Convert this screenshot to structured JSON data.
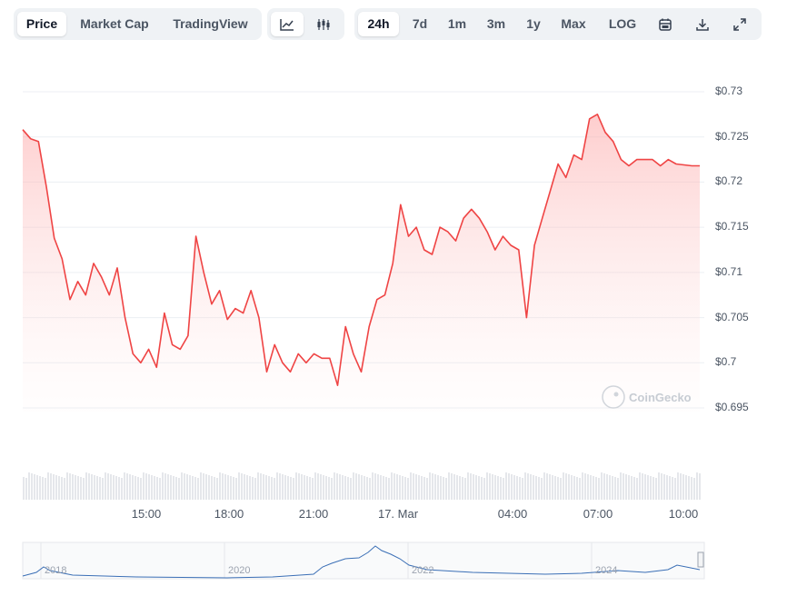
{
  "toolbar": {
    "view_tabs": [
      "Price",
      "Market Cap",
      "TradingView"
    ],
    "active_view": "Price",
    "chart_style_icons": [
      "line-chart-icon",
      "candlestick-icon"
    ],
    "ranges": [
      "24h",
      "7d",
      "1m",
      "3m",
      "1y",
      "Max",
      "LOG"
    ],
    "active_range": "24h",
    "action_icons": [
      "calendar-icon",
      "download-icon",
      "expand-icon"
    ]
  },
  "watermark": "CoinGecko",
  "colors": {
    "line": "#ef4444",
    "fill_top": "#fecaca",
    "volume": "#e5e7eb",
    "navigator": "#3b6fb6"
  },
  "chart_data": {
    "type": "area",
    "series": [
      {
        "x": [
          "12:55",
          "13:10",
          "13:25",
          "13:40",
          "13:55",
          "14:10",
          "14:25",
          "14:40",
          "14:55",
          "15:10",
          "15:25",
          "15:40",
          "15:55",
          "16:10",
          "16:25",
          "16:40",
          "16:55",
          "17:10",
          "17:25",
          "17:40",
          "17:55",
          "18:10",
          "18:25",
          "18:40",
          "18:55",
          "19:10",
          "19:25",
          "19:40",
          "19:55",
          "20:10",
          "20:25",
          "20:40",
          "20:55",
          "21:10",
          "21:25",
          "21:40",
          "21:55",
          "22:10",
          "22:25",
          "22:40",
          "22:55",
          "23:10",
          "23:25",
          "23:40",
          "23:55",
          "00:10",
          "00:25",
          "00:40",
          "00:55",
          "01:10",
          "01:25",
          "01:40",
          "01:55",
          "02:10",
          "02:25",
          "02:40",
          "02:55",
          "03:10",
          "03:25",
          "03:40",
          "03:55",
          "04:10",
          "04:25",
          "04:40",
          "04:55",
          "05:10",
          "05:25",
          "05:40",
          "05:55",
          "06:10",
          "06:25",
          "06:40",
          "06:55",
          "07:10",
          "07:25",
          "07:40",
          "07:55",
          "08:10",
          "08:25",
          "08:40",
          "08:55",
          "09:10",
          "09:25",
          "09:40",
          "09:55",
          "10:10",
          "10:25"
        ],
        "values": [
          0.7258,
          0.7248,
          0.7245,
          0.7195,
          0.7138,
          0.7115,
          0.707,
          0.709,
          0.7075,
          0.711,
          0.7095,
          0.7075,
          0.7105,
          0.705,
          0.701,
          0.7,
          0.7015,
          0.6995,
          0.7055,
          0.702,
          0.7015,
          0.703,
          0.714,
          0.71,
          0.7065,
          0.708,
          0.7048,
          0.706,
          0.7055,
          0.708,
          0.705,
          0.699,
          0.702,
          0.7,
          0.699,
          0.701,
          0.7,
          0.701,
          0.7005,
          0.7005,
          0.6975,
          0.704,
          0.701,
          0.699,
          0.704,
          0.707,
          0.7075,
          0.711,
          0.7175,
          0.714,
          0.715,
          0.7125,
          0.712,
          0.715,
          0.7145,
          0.7135,
          0.716,
          0.717,
          0.716,
          0.7145,
          0.7125,
          0.714,
          0.713,
          0.7125,
          0.705,
          0.713,
          0.716,
          0.719,
          0.722,
          0.7205,
          0.723,
          0.7225,
          0.727,
          0.7275,
          0.7255,
          0.7245,
          0.7225,
          0.7218,
          0.7225,
          0.7225,
          0.7225,
          0.7218,
          0.7225,
          0.722,
          0.7219,
          0.7218,
          0.7218
        ]
      }
    ],
    "ylim": [
      0.6945,
      0.7305
    ],
    "y_ticks": [
      "$0.73",
      "$0.725",
      "$0.72",
      "$0.715",
      "$0.71",
      "$0.705",
      "$0.7",
      "$0.695"
    ],
    "x_ticks": [
      "15:00",
      "18:00",
      "21:00",
      "17. Mar",
      "04:00",
      "07:00",
      "10:00"
    ],
    "navigator_ticks": [
      "2018",
      "2020",
      "2022",
      "2024"
    ],
    "grid": true
  }
}
